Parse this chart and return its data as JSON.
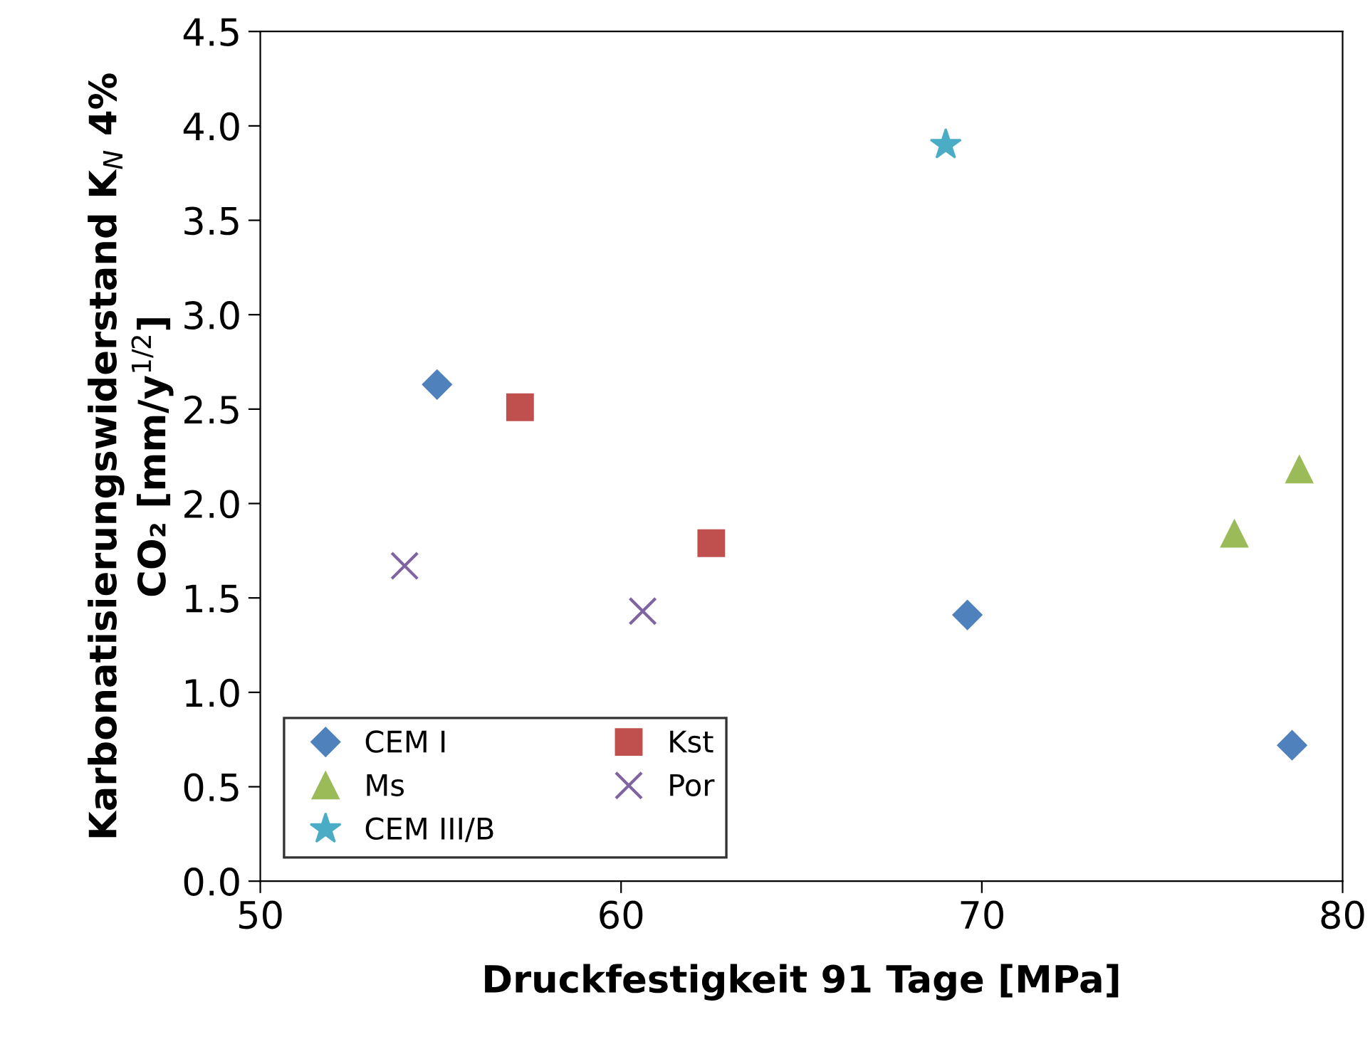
{
  "chart_data": {
    "type": "scatter",
    "xlabel": "Druckfestigkeit 91 Tage [MPa]",
    "ylabel": "Karbonatisierungswiderstand K$_{N}$ 4%\nCO₂ [mm/y$^{1/2}$]",
    "xlim": [
      50,
      80
    ],
    "xticks": [
      50,
      60,
      70,
      80
    ],
    "ylim": [
      0,
      4.5
    ],
    "yticks": [
      {
        "value": 0,
        "label": "0.0"
      },
      {
        "value": 0.5,
        "label": "0.5"
      },
      {
        "value": 1,
        "label": "1.0"
      },
      {
        "value": 1.5,
        "label": "1.5"
      },
      {
        "value": 2,
        "label": "2.0"
      },
      {
        "value": 2.5,
        "label": "2.5"
      },
      {
        "value": 3,
        "label": "3.0"
      },
      {
        "value": 3.5,
        "label": "3.5"
      },
      {
        "value": 4,
        "label": "4.0"
      },
      {
        "value": 4.5,
        "label": "4.5"
      }
    ],
    "grid": false,
    "legend": "bottom left",
    "series": [
      {
        "name": "CEM I",
        "color": "#4f81bd",
        "marker": "diamond",
        "x": [
          54.9,
          69.6,
          78.6
        ],
        "values": [
          2.63,
          1.41,
          0.72
        ]
      },
      {
        "name": "Kst",
        "color": "#c0504d",
        "marker": "square",
        "x": [
          57.2,
          62.5
        ],
        "values": [
          2.51,
          1.79
        ]
      },
      {
        "name": "Ms",
        "color": "#9bbb59",
        "marker": "triangle",
        "x": [
          77.0,
          78.8
        ],
        "values": [
          1.84,
          2.18
        ]
      },
      {
        "name": "Por",
        "color": "#8064a2",
        "marker": "cross",
        "x": [
          54.0,
          60.6
        ],
        "values": [
          1.67,
          1.43
        ]
      },
      {
        "name": "CEM III/B",
        "color": "#4bacc6",
        "marker": "star",
        "x": [
          69.0
        ],
        "values": [
          3.9
        ]
      }
    ]
  }
}
